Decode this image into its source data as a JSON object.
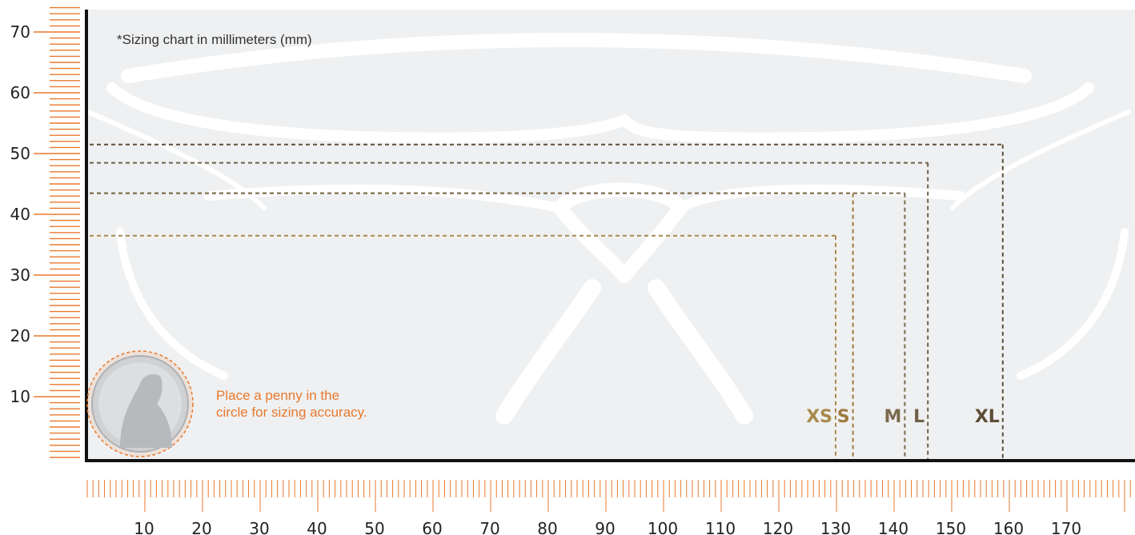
{
  "note": "*Sizing chart in millimeters (mm)",
  "penny_text": {
    "line1": "Place a penny in the",
    "line2": "circle for sizing accuracy."
  },
  "colors": {
    "ruler": "#e8792d",
    "panel": "#eff0f1",
    "axis": "#111111",
    "xs": "#a98a4d",
    "s": "#9d7a3e",
    "m": "#7b6a4e",
    "l": "#6f5f49",
    "xl": "#5e4d39"
  },
  "chart_data": {
    "type": "diagram",
    "units": "mm",
    "x_ticks": [
      10,
      20,
      30,
      40,
      50,
      60,
      70,
      80,
      90,
      100,
      110,
      120,
      130,
      140,
      150,
      160,
      170
    ],
    "y_ticks": [
      10,
      20,
      30,
      40,
      50,
      60,
      70
    ],
    "sizes": [
      {
        "label": "XS",
        "width": 130,
        "height": 37,
        "color": "#a98a4d"
      },
      {
        "label": "S",
        "width": 133,
        "height": 44,
        "color": "#9d7a3e"
      },
      {
        "label": "M",
        "width": 142,
        "height": 44,
        "color": "#7b6a4e"
      },
      {
        "label": "L",
        "width": 146,
        "height": 49,
        "color": "#6f5f49"
      },
      {
        "label": "XL",
        "width": 159,
        "height": 52,
        "color": "#5e4d39"
      }
    ]
  }
}
